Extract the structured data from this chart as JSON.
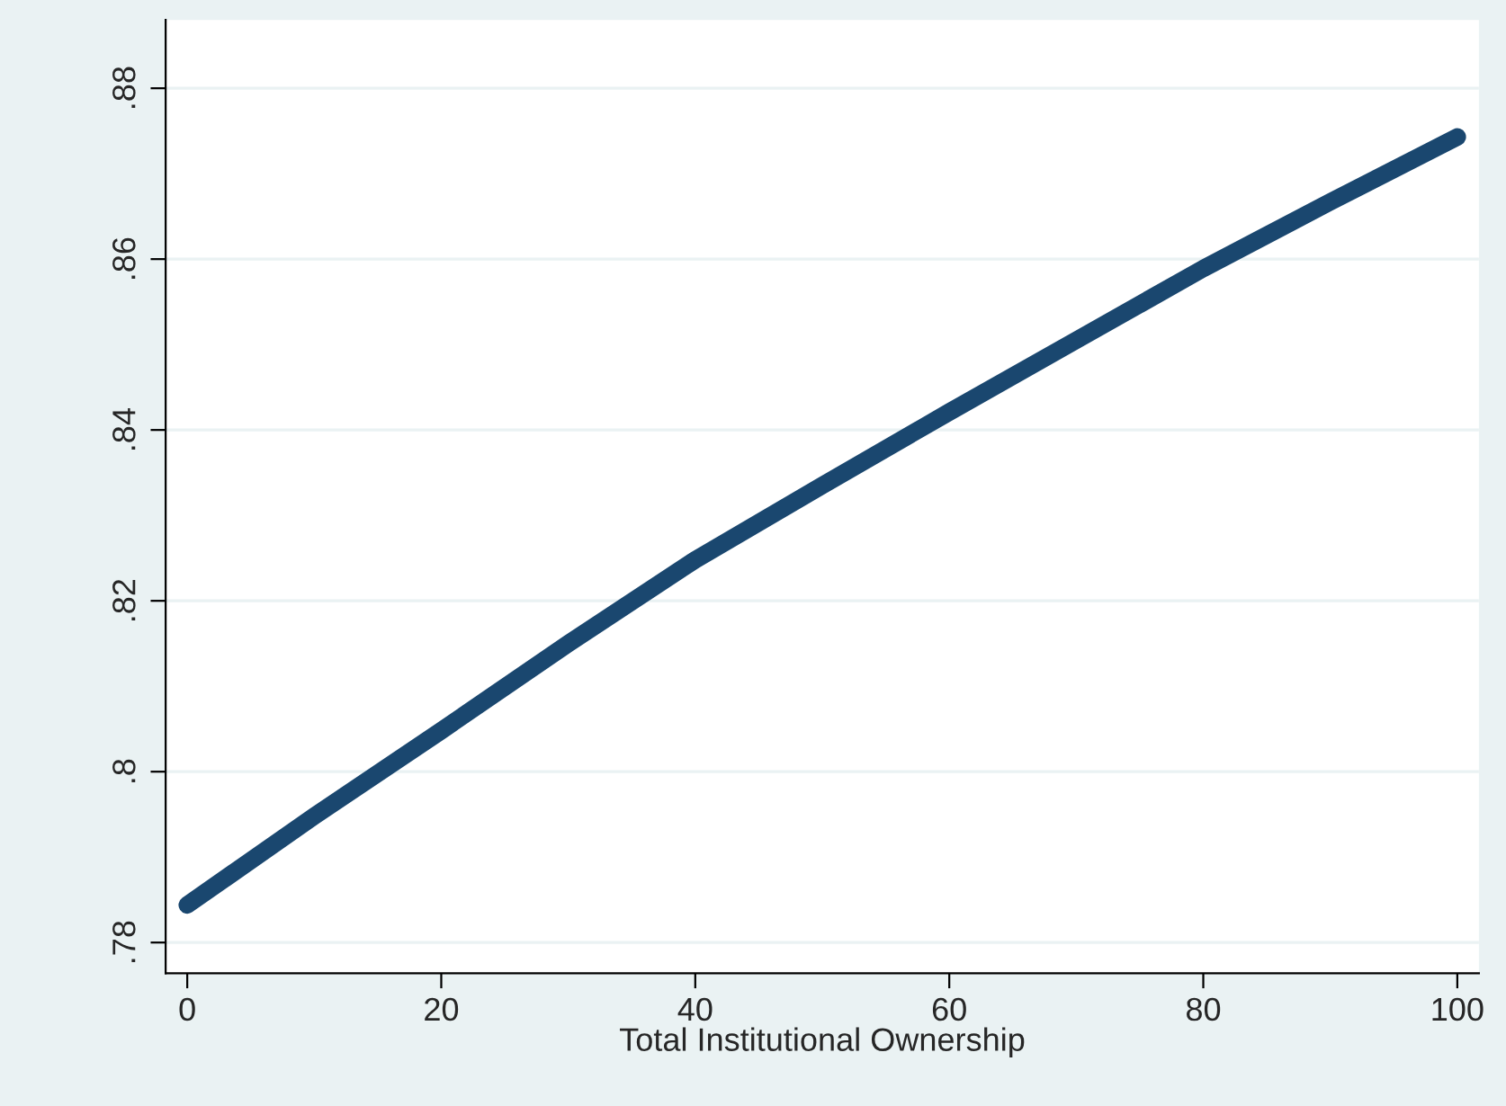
{
  "chart_data": {
    "type": "line",
    "xlabel": "Total Institutional Ownership",
    "x": [
      0,
      10,
      20,
      30,
      40,
      50,
      60,
      70,
      80,
      90,
      100
    ],
    "series": [
      {
        "color": "#1a476f",
        "values": [
          0.7844,
          0.7948,
          0.8048,
          0.815,
          0.8248,
          0.8335,
          0.8421,
          0.8505,
          0.8589,
          0.8667,
          0.8743
        ]
      }
    ],
    "xlim": [
      -1.7,
      101.7
    ],
    "xticks": [
      0,
      20,
      40,
      60,
      80,
      100
    ],
    "ylim": [
      0.7764,
      0.888
    ],
    "yticks": [
      {
        "value": 0.78,
        "label": ".78"
      },
      {
        "value": 0.8,
        "label": ".8"
      },
      {
        "value": 0.82,
        "label": ".82"
      },
      {
        "value": 0.84,
        "label": ".84"
      },
      {
        "value": 0.86,
        "label": ".86"
      },
      {
        "value": 0.88,
        "label": ".88"
      }
    ],
    "grid": "y",
    "legend": false,
    "line_style": "solid"
  }
}
